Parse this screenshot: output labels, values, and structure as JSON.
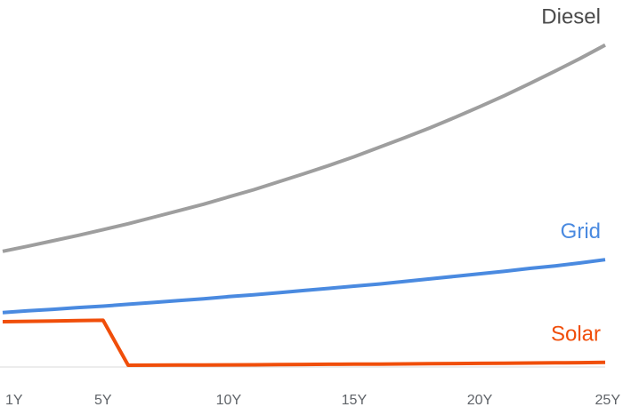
{
  "chart_data": {
    "type": "line",
    "title": "",
    "xlabel": "",
    "ylabel": "",
    "x": [
      1,
      2,
      3,
      4,
      5,
      6,
      7,
      8,
      9,
      10,
      11,
      12,
      13,
      14,
      15,
      16,
      17,
      18,
      19,
      20,
      21,
      22,
      23,
      24,
      25
    ],
    "x_tick_labels": [
      {
        "x": 1,
        "label": "1Y"
      },
      {
        "x": 5,
        "label": "5Y"
      },
      {
        "x": 10,
        "label": "10Y"
      },
      {
        "x": 15,
        "label": "15Y"
      },
      {
        "x": 20,
        "label": "20Y"
      },
      {
        "x": 25,
        "label": "25Y"
      }
    ],
    "ylim": [
      0,
      100
    ],
    "grid": false,
    "series": [
      {
        "name": "Diesel",
        "color": "#9e9e9e",
        "values": [
          31.9,
          33.3,
          34.8,
          36.3,
          37.9,
          39.5,
          41.3,
          43.1,
          44.9,
          46.9,
          48.9,
          51.1,
          53.3,
          55.6,
          58.0,
          60.6,
          63.2,
          65.9,
          68.8,
          71.8,
          74.9,
          78.2,
          81.6,
          85.1,
          88.8
        ]
      },
      {
        "name": "Grid",
        "color": "#4a8ae0",
        "values": [
          15.0,
          15.5,
          15.9,
          16.4,
          16.8,
          17.3,
          17.8,
          18.3,
          18.8,
          19.4,
          19.9,
          20.5,
          21.1,
          21.7,
          22.3,
          22.9,
          23.6,
          24.3,
          25.0,
          25.7,
          26.4,
          27.2,
          27.9,
          28.7,
          29.6
        ]
      },
      {
        "name": "Solar",
        "color": "#f04e0a",
        "values": [
          12.5,
          12.6,
          12.7,
          12.8,
          12.9,
          0.5,
          0.52,
          0.55,
          0.57,
          0.6,
          0.62,
          0.65,
          0.7,
          0.75,
          0.8,
          0.82,
          0.85,
          0.9,
          0.95,
          1.0,
          1.05,
          1.1,
          1.15,
          1.2,
          1.3
        ]
      }
    ]
  }
}
